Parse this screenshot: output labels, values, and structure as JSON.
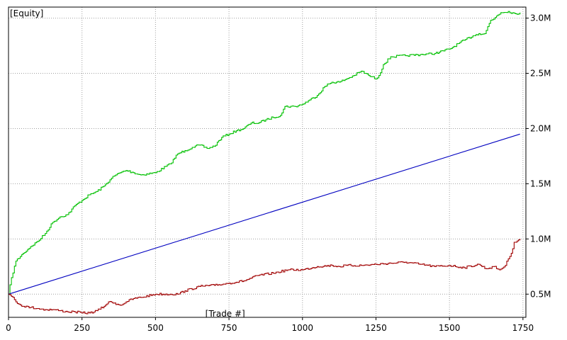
{
  "chart_data": {
    "type": "line",
    "title": "[Equity]",
    "xlabel": "[Trade #]",
    "ylabel": "",
    "xlim": [
      0,
      1760
    ],
    "ylim": [
      0.29,
      3.1
    ],
    "x_ticks": [
      0,
      250,
      500,
      750,
      1000,
      1250,
      1500,
      1750
    ],
    "x_tick_labels": [
      "0",
      "250",
      "500",
      "750",
      "1000",
      "1250",
      "1500",
      "1750"
    ],
    "y_ticks": [
      0.5,
      1.0,
      1.5,
      2.0,
      2.5,
      3.0
    ],
    "y_tick_labels": [
      "0.5M",
      "1.0M",
      "1.5M",
      "2.0M",
      "2.5M",
      "3.0M"
    ],
    "grid": true,
    "series": [
      {
        "color": "#00c000",
        "x": [
          0,
          10,
          25,
          50,
          75,
          100,
          125,
          150,
          175,
          200,
          225,
          250,
          275,
          300,
          325,
          350,
          365,
          380,
          400,
          425,
          450,
          500,
          550,
          575,
          600,
          625,
          650,
          675,
          700,
          725,
          750,
          775,
          800,
          825,
          850,
          875,
          900,
          925,
          940,
          975,
          1000,
          1025,
          1050,
          1075,
          1100,
          1125,
          1150,
          1175,
          1200,
          1225,
          1250,
          1260,
          1275,
          1300,
          1350,
          1400,
          1450,
          1500,
          1550,
          1580,
          1600,
          1620,
          1640,
          1650,
          1660,
          1675,
          1700,
          1725,
          1740
        ],
        "values": [
          0.5,
          0.65,
          0.8,
          0.87,
          0.93,
          0.98,
          1.05,
          1.15,
          1.2,
          1.22,
          1.3,
          1.35,
          1.4,
          1.43,
          1.48,
          1.55,
          1.58,
          1.6,
          1.62,
          1.6,
          1.58,
          1.6,
          1.68,
          1.77,
          1.8,
          1.83,
          1.85,
          1.82,
          1.84,
          1.92,
          1.95,
          1.98,
          2.0,
          2.05,
          2.05,
          2.08,
          2.1,
          2.12,
          2.2,
          2.2,
          2.22,
          2.26,
          2.3,
          2.38,
          2.42,
          2.42,
          2.45,
          2.48,
          2.52,
          2.48,
          2.45,
          2.48,
          2.58,
          2.65,
          2.66,
          2.67,
          2.68,
          2.72,
          2.8,
          2.84,
          2.86,
          2.86,
          2.98,
          2.99,
          3.02,
          3.05,
          3.06,
          3.04,
          3.05
        ]
      },
      {
        "color": "#0000c0",
        "x": [
          0,
          1740
        ],
        "values": [
          0.5,
          1.95
        ]
      },
      {
        "color": "#a00000",
        "x": [
          0,
          10,
          25,
          50,
          75,
          100,
          125,
          150,
          175,
          200,
          225,
          250,
          275,
          300,
          325,
          340,
          360,
          380,
          400,
          425,
          450,
          500,
          550,
          575,
          600,
          650,
          700,
          750,
          800,
          850,
          900,
          950,
          1000,
          1050,
          1100,
          1125,
          1150,
          1200,
          1250,
          1300,
          1350,
          1400,
          1450,
          1500,
          1550,
          1600,
          1625,
          1650,
          1670,
          1690,
          1700,
          1710,
          1720,
          1740
        ],
        "values": [
          0.5,
          0.48,
          0.43,
          0.39,
          0.38,
          0.37,
          0.36,
          0.36,
          0.35,
          0.34,
          0.34,
          0.33,
          0.33,
          0.35,
          0.39,
          0.43,
          0.42,
          0.4,
          0.43,
          0.46,
          0.47,
          0.5,
          0.5,
          0.5,
          0.53,
          0.57,
          0.58,
          0.6,
          0.62,
          0.67,
          0.69,
          0.72,
          0.72,
          0.75,
          0.76,
          0.75,
          0.76,
          0.76,
          0.77,
          0.78,
          0.79,
          0.77,
          0.75,
          0.76,
          0.74,
          0.77,
          0.73,
          0.75,
          0.72,
          0.76,
          0.82,
          0.87,
          0.97,
          1.0
        ]
      }
    ]
  }
}
